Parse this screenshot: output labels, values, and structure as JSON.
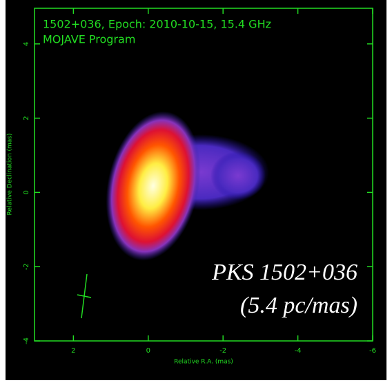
{
  "chart_data": {
    "type": "image",
    "title": "1502+036, Epoch: 2010-10-15, 15.4 GHz",
    "subtitle": "MOJAVE Program",
    "x_label": "Relative R.A. (mas)",
    "y_label": "Relative Declination (mas)",
    "annotations": [
      "PKS 1502+036",
      "(5.4 pc/mas)"
    ],
    "xlim": [
      3.04,
      -6
    ],
    "xticks": [
      2,
      0,
      -2,
      -4,
      -6
    ],
    "ylim": [
      -4,
      4.96
    ],
    "yticks": [
      4,
      2,
      0,
      -2,
      -4
    ]
  }
}
